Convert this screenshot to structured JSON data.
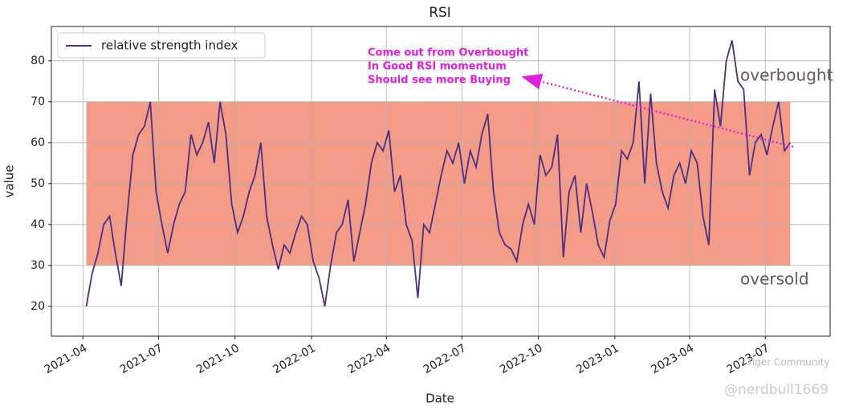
{
  "chart_data": {
    "type": "line",
    "title": "RSI",
    "x_label": "Date",
    "y_label": "value",
    "x": [
      "2021-04-05",
      "2021-04-12",
      "2021-04-19",
      "2021-04-26",
      "2021-05-03",
      "2021-05-10",
      "2021-05-17",
      "2021-05-24",
      "2021-05-31",
      "2021-06-07",
      "2021-06-14",
      "2021-06-21",
      "2021-06-28",
      "2021-07-05",
      "2021-07-12",
      "2021-07-19",
      "2021-07-26",
      "2021-08-02",
      "2021-08-09",
      "2021-08-16",
      "2021-08-23",
      "2021-08-30",
      "2021-09-06",
      "2021-09-13",
      "2021-09-20",
      "2021-09-27",
      "2021-10-04",
      "2021-10-11",
      "2021-10-18",
      "2021-10-25",
      "2021-11-01",
      "2021-11-08",
      "2021-11-15",
      "2021-11-22",
      "2021-11-29",
      "2021-12-06",
      "2021-12-13",
      "2021-12-20",
      "2021-12-27",
      "2022-01-03",
      "2022-01-10",
      "2022-01-17",
      "2022-01-24",
      "2022-01-31",
      "2022-02-07",
      "2022-02-14",
      "2022-02-21",
      "2022-02-28",
      "2022-03-07",
      "2022-03-14",
      "2022-03-21",
      "2022-03-28",
      "2022-04-04",
      "2022-04-11",
      "2022-04-18",
      "2022-04-25",
      "2022-05-02",
      "2022-05-09",
      "2022-05-16",
      "2022-05-23",
      "2022-05-30",
      "2022-06-06",
      "2022-06-13",
      "2022-06-20",
      "2022-06-27",
      "2022-07-04",
      "2022-07-11",
      "2022-07-18",
      "2022-07-25",
      "2022-08-01",
      "2022-08-08",
      "2022-08-15",
      "2022-08-22",
      "2022-08-29",
      "2022-09-05",
      "2022-09-12",
      "2022-09-19",
      "2022-09-26",
      "2022-10-03",
      "2022-10-10",
      "2022-10-17",
      "2022-10-24",
      "2022-10-31",
      "2022-11-07",
      "2022-11-14",
      "2022-11-21",
      "2022-11-28",
      "2022-12-05",
      "2022-12-12",
      "2022-12-19",
      "2022-12-26",
      "2023-01-02",
      "2023-01-09",
      "2023-01-16",
      "2023-01-23",
      "2023-01-30",
      "2023-02-06",
      "2023-02-13",
      "2023-02-20",
      "2023-02-27",
      "2023-03-06",
      "2023-03-13",
      "2023-03-20",
      "2023-03-27",
      "2023-04-03",
      "2023-04-10",
      "2023-04-17",
      "2023-04-24",
      "2023-05-01",
      "2023-05-08",
      "2023-05-15",
      "2023-05-22",
      "2023-05-29",
      "2023-06-05",
      "2023-06-12",
      "2023-06-19",
      "2023-06-26",
      "2023-07-03",
      "2023-07-10",
      "2023-07-17",
      "2023-07-24",
      "2023-07-31"
    ],
    "series": [
      {
        "name": "relative strength index",
        "color": "#4c2f7f",
        "values": [
          20,
          28,
          33,
          40,
          42,
          33,
          25,
          42,
          57,
          62,
          64,
          70,
          48,
          40,
          33,
          40,
          45,
          48,
          62,
          57,
          60,
          65,
          55,
          70,
          62,
          45,
          38,
          42,
          48,
          52,
          60,
          42,
          35,
          29,
          35,
          33,
          38,
          42,
          40,
          31,
          27,
          20,
          30,
          38,
          40,
          46,
          31,
          38,
          45,
          55,
          60,
          58,
          63,
          48,
          52,
          40,
          36,
          22,
          40,
          38,
          45,
          52,
          58,
          55,
          60,
          50,
          58,
          54,
          62,
          67,
          48,
          38,
          35,
          34,
          31,
          40,
          45,
          40,
          57,
          52,
          54,
          62,
          32,
          48,
          52,
          38,
          50,
          43,
          35,
          32,
          41,
          45,
          58,
          56,
          60,
          75,
          50,
          72,
          55,
          48,
          44,
          52,
          55,
          50,
          58,
          55,
          42,
          35,
          73,
          64,
          80,
          85,
          75,
          73,
          52,
          60,
          62,
          57,
          64,
          70,
          58,
          60
        ]
      }
    ],
    "band": {
      "lower": 30,
      "upper": 70,
      "color": "#f4917b"
    },
    "xlim": [
      "2021-02-22",
      "2023-09-17"
    ],
    "xticks": [
      "2021-04",
      "2021-07",
      "2021-10",
      "2022-01",
      "2022-04",
      "2022-07",
      "2022-10",
      "2023-01",
      "2023-04",
      "2023-07"
    ],
    "ylim": [
      12.7,
      88.4
    ],
    "yticks": [
      20,
      30,
      40,
      50,
      60,
      70,
      80
    ],
    "grid": true,
    "legend": "upper left",
    "annotations": {
      "overbought": "overbought",
      "oversold": "oversold",
      "note": [
        "Come out from Overbought",
        "In Good RSI momentum",
        "Should see more Buying"
      ]
    },
    "watermark": [
      "Tiger Community",
      "@nerdbull1669"
    ]
  }
}
